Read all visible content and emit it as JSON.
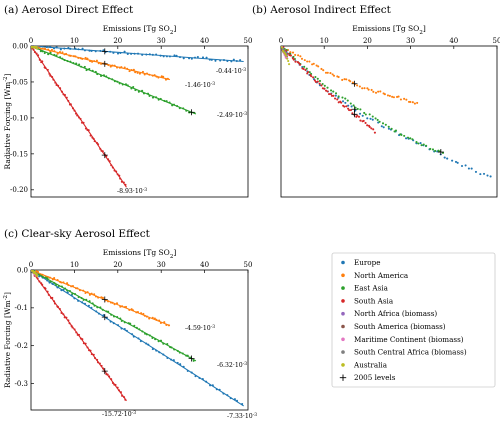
{
  "chart_data": [
    {
      "type": "scatter",
      "panel_label": "(a)",
      "title": "Aerosol Direct Effect",
      "xlabel": "Emissions [Tg SO",
      "xlabel_sub": "2",
      "xlabel_end": "]",
      "ylabel": "Radiative Forcing [Wm",
      "ylabel_sup": "-2",
      "ylabel_end": "]",
      "xlim": [
        0,
        50
      ],
      "ylim": [
        -0.21,
        0
      ],
      "xticks": [
        "0",
        "10",
        "20",
        "30",
        "40",
        "50"
      ],
      "yticks": [
        "0.00",
        "-0.05",
        "-0.10",
        "-0.15",
        "-0.20"
      ],
      "ytick_values": [
        0,
        -0.05,
        -0.1,
        -0.15,
        -0.2
      ],
      "grid": false,
      "x_axis_position": "top",
      "series": [
        {
          "name": "Europe",
          "color": "#1f77b4",
          "slope": -0.00044,
          "xmax": 49,
          "slope_label": "-0.44·10",
          "slope_exp": "-3",
          "mark_2005": 17
        },
        {
          "name": "North America",
          "color": "#ff7f0e",
          "slope": -0.00146,
          "xmax": 32,
          "slope_label": "-1.46·10",
          "slope_exp": "-3",
          "mark_2005": 17
        },
        {
          "name": "East Asia",
          "color": "#2ca02c",
          "slope": -0.00249,
          "xmax": 38,
          "slope_label": "-2.49·10",
          "slope_exp": "-3",
          "mark_2005": 37
        },
        {
          "name": "South Asia",
          "color": "#d62728",
          "slope": -0.00893,
          "xmax": 22,
          "slope_label": "-8.93·10",
          "slope_exp": "-3",
          "mark_2005": 17
        },
        {
          "name": "North Africa (biomass)",
          "color": "#9467bd",
          "slope": -0.0012,
          "xmax": 1.5
        },
        {
          "name": "South America (biomass)",
          "color": "#8c564b",
          "slope": -0.0012,
          "xmax": 1.5
        },
        {
          "name": "Maritime Continent (biomass)",
          "color": "#e377c2",
          "slope": -0.0012,
          "xmax": 1.5
        },
        {
          "name": "South Central Africa (biomass)",
          "color": "#7f7f7f",
          "slope": -0.0012,
          "xmax": 1.5
        },
        {
          "name": "Australia",
          "color": "#bcbd22",
          "slope": -0.0012,
          "xmax": 1.5
        }
      ]
    },
    {
      "type": "scatter",
      "panel_label": "(b)",
      "title": "Aerosol Indirect Effect",
      "xlabel": "Emissions [Tg SO",
      "xlabel_sub": "2",
      "xlabel_end": "]",
      "xlim": [
        0,
        50
      ],
      "ylim": [
        -0.21,
        0
      ],
      "xticks": [
        "0",
        "10",
        "20",
        "30",
        "40",
        "50"
      ],
      "grid": false,
      "x_axis_position": "top",
      "series": [
        {
          "name": "Europe",
          "color": "#1f77b4",
          "curve": [
            [
              0,
              0
            ],
            [
              10,
              -0.06
            ],
            [
              20,
              -0.1
            ],
            [
              30,
              -0.13
            ],
            [
              40,
              -0.16
            ],
            [
              49,
              -0.184
            ]
          ],
          "mark_2005": 17
        },
        {
          "name": "North America",
          "color": "#ff7f0e",
          "curve": [
            [
              0,
              0
            ],
            [
              10,
              -0.035
            ],
            [
              20,
              -0.06
            ],
            [
              32,
              -0.08
            ]
          ],
          "mark_2005": 17
        },
        {
          "name": "East Asia",
          "color": "#2ca02c",
          "curve": [
            [
              0,
              0
            ],
            [
              10,
              -0.055
            ],
            [
              20,
              -0.095
            ],
            [
              30,
              -0.13
            ],
            [
              38,
              -0.15
            ]
          ],
          "mark_2005": 37
        },
        {
          "name": "South Asia",
          "color": "#d62728",
          "curve": [
            [
              0,
              0
            ],
            [
              10,
              -0.06
            ],
            [
              22,
              -0.12
            ]
          ],
          "mark_2005": 17
        },
        {
          "name": "North Africa (biomass)",
          "color": "#9467bd",
          "curve": [
            [
              0,
              0
            ],
            [
              1.5,
              -0.015
            ]
          ]
        },
        {
          "name": "South America (biomass)",
          "color": "#8c564b",
          "curve": [
            [
              0,
              0
            ],
            [
              1.5,
              -0.018
            ]
          ]
        },
        {
          "name": "Maritime Continent (biomass)",
          "color": "#e377c2",
          "curve": [
            [
              0,
              0
            ],
            [
              1.5,
              -0.02
            ]
          ]
        },
        {
          "name": "South Central Africa (biomass)",
          "color": "#7f7f7f",
          "curve": [
            [
              0,
              0
            ],
            [
              1.5,
              -0.014
            ]
          ]
        },
        {
          "name": "Australia",
          "color": "#bcbd22",
          "curve": [
            [
              0,
              0
            ],
            [
              2,
              -0.025
            ]
          ]
        }
      ]
    },
    {
      "type": "scatter",
      "panel_label": "(c)",
      "title": "Clear-sky Aerosol Effect",
      "xlabel": "Emissions [Tg SO",
      "xlabel_sub": "2",
      "xlabel_end": "]",
      "ylabel": "Radiative Forcing [Wm",
      "ylabel_sup": "-2",
      "ylabel_end": "]",
      "xlim": [
        0,
        50
      ],
      "ylim": [
        -0.37,
        0
      ],
      "xticks": [
        "0",
        "10",
        "20",
        "30",
        "40",
        "50"
      ],
      "yticks": [
        "0.0",
        "-0.1",
        "-0.2",
        "-0.3"
      ],
      "ytick_values": [
        0,
        -0.1,
        -0.2,
        -0.3
      ],
      "grid": false,
      "x_axis_position": "top",
      "series": [
        {
          "name": "Europe",
          "color": "#1f77b4",
          "slope": -0.00733,
          "xmax": 49,
          "slope_label": "-7.33·10",
          "slope_exp": "-3",
          "mark_2005": 17
        },
        {
          "name": "North America",
          "color": "#ff7f0e",
          "slope": -0.00459,
          "xmax": 32,
          "slope_label": "-4.59·10",
          "slope_exp": "-3",
          "mark_2005": 17
        },
        {
          "name": "East Asia",
          "color": "#2ca02c",
          "slope": -0.00632,
          "xmax": 38,
          "slope_label": "-6.32·10",
          "slope_exp": "-3",
          "mark_2005": 37
        },
        {
          "name": "South Asia",
          "color": "#d62728",
          "slope": -0.01572,
          "xmax": 22,
          "slope_label": "-15.72·10",
          "slope_exp": "-3",
          "mark_2005": 17
        },
        {
          "name": "North Africa (biomass)",
          "color": "#9467bd",
          "slope": -0.01,
          "xmax": 1.5
        },
        {
          "name": "South America (biomass)",
          "color": "#8c564b",
          "slope": -0.01,
          "xmax": 1.5
        },
        {
          "name": "Maritime Continent (biomass)",
          "color": "#e377c2",
          "slope": -0.01,
          "xmax": 1.5
        },
        {
          "name": "South Central Africa (biomass)",
          "color": "#7f7f7f",
          "slope": -0.01,
          "xmax": 1.5
        },
        {
          "name": "Australia",
          "color": "#bcbd22",
          "slope": -0.01,
          "xmax": 1.5
        }
      ]
    }
  ],
  "legend": {
    "placement": "lower-right",
    "items": [
      {
        "label": "Europe",
        "color": "#1f77b4",
        "marker": "dot"
      },
      {
        "label": "North America",
        "color": "#ff7f0e",
        "marker": "dot"
      },
      {
        "label": "East Asia",
        "color": "#2ca02c",
        "marker": "dot"
      },
      {
        "label": "South Asia",
        "color": "#d62728",
        "marker": "dot"
      },
      {
        "label": "North Africa (biomass)",
        "color": "#9467bd",
        "marker": "dot"
      },
      {
        "label": "South America (biomass)",
        "color": "#8c564b",
        "marker": "dot"
      },
      {
        "label": "Maritime Continent (biomass)",
        "color": "#e377c2",
        "marker": "dot"
      },
      {
        "label": "South Central Africa (biomass)",
        "color": "#7f7f7f",
        "marker": "dot"
      },
      {
        "label": "Australia",
        "color": "#bcbd22",
        "marker": "dot"
      },
      {
        "label": "2005 levels",
        "color": "#000000",
        "marker": "plus"
      }
    ]
  }
}
